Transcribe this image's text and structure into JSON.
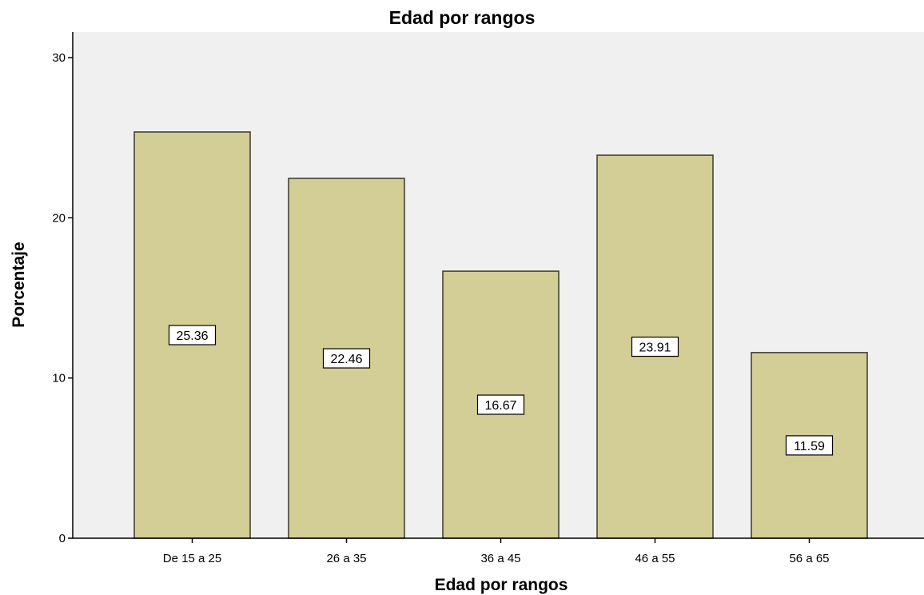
{
  "chart_data": {
    "type": "bar",
    "title": "Edad por rangos",
    "xlabel": "Edad por rangos",
    "ylabel": "Porcentaje",
    "categories": [
      "De 15 a 25",
      "26 a 35",
      "36 a 45",
      "46 a 55",
      "56 a 65"
    ],
    "values": [
      25.36,
      22.46,
      16.67,
      23.91,
      11.59
    ],
    "data_labels": [
      "25.36",
      "22.46",
      "16.67",
      "23.91",
      "11.59"
    ],
    "yticks": [
      0,
      10,
      20,
      30
    ],
    "ylim": [
      0,
      31.6
    ],
    "grid": false,
    "legend": "none",
    "colors": {
      "bar_fill": "#d3cd96",
      "bar_stroke": "#3a3a2a",
      "plot_background": "#f0f0f0",
      "axis": "#000000"
    }
  }
}
